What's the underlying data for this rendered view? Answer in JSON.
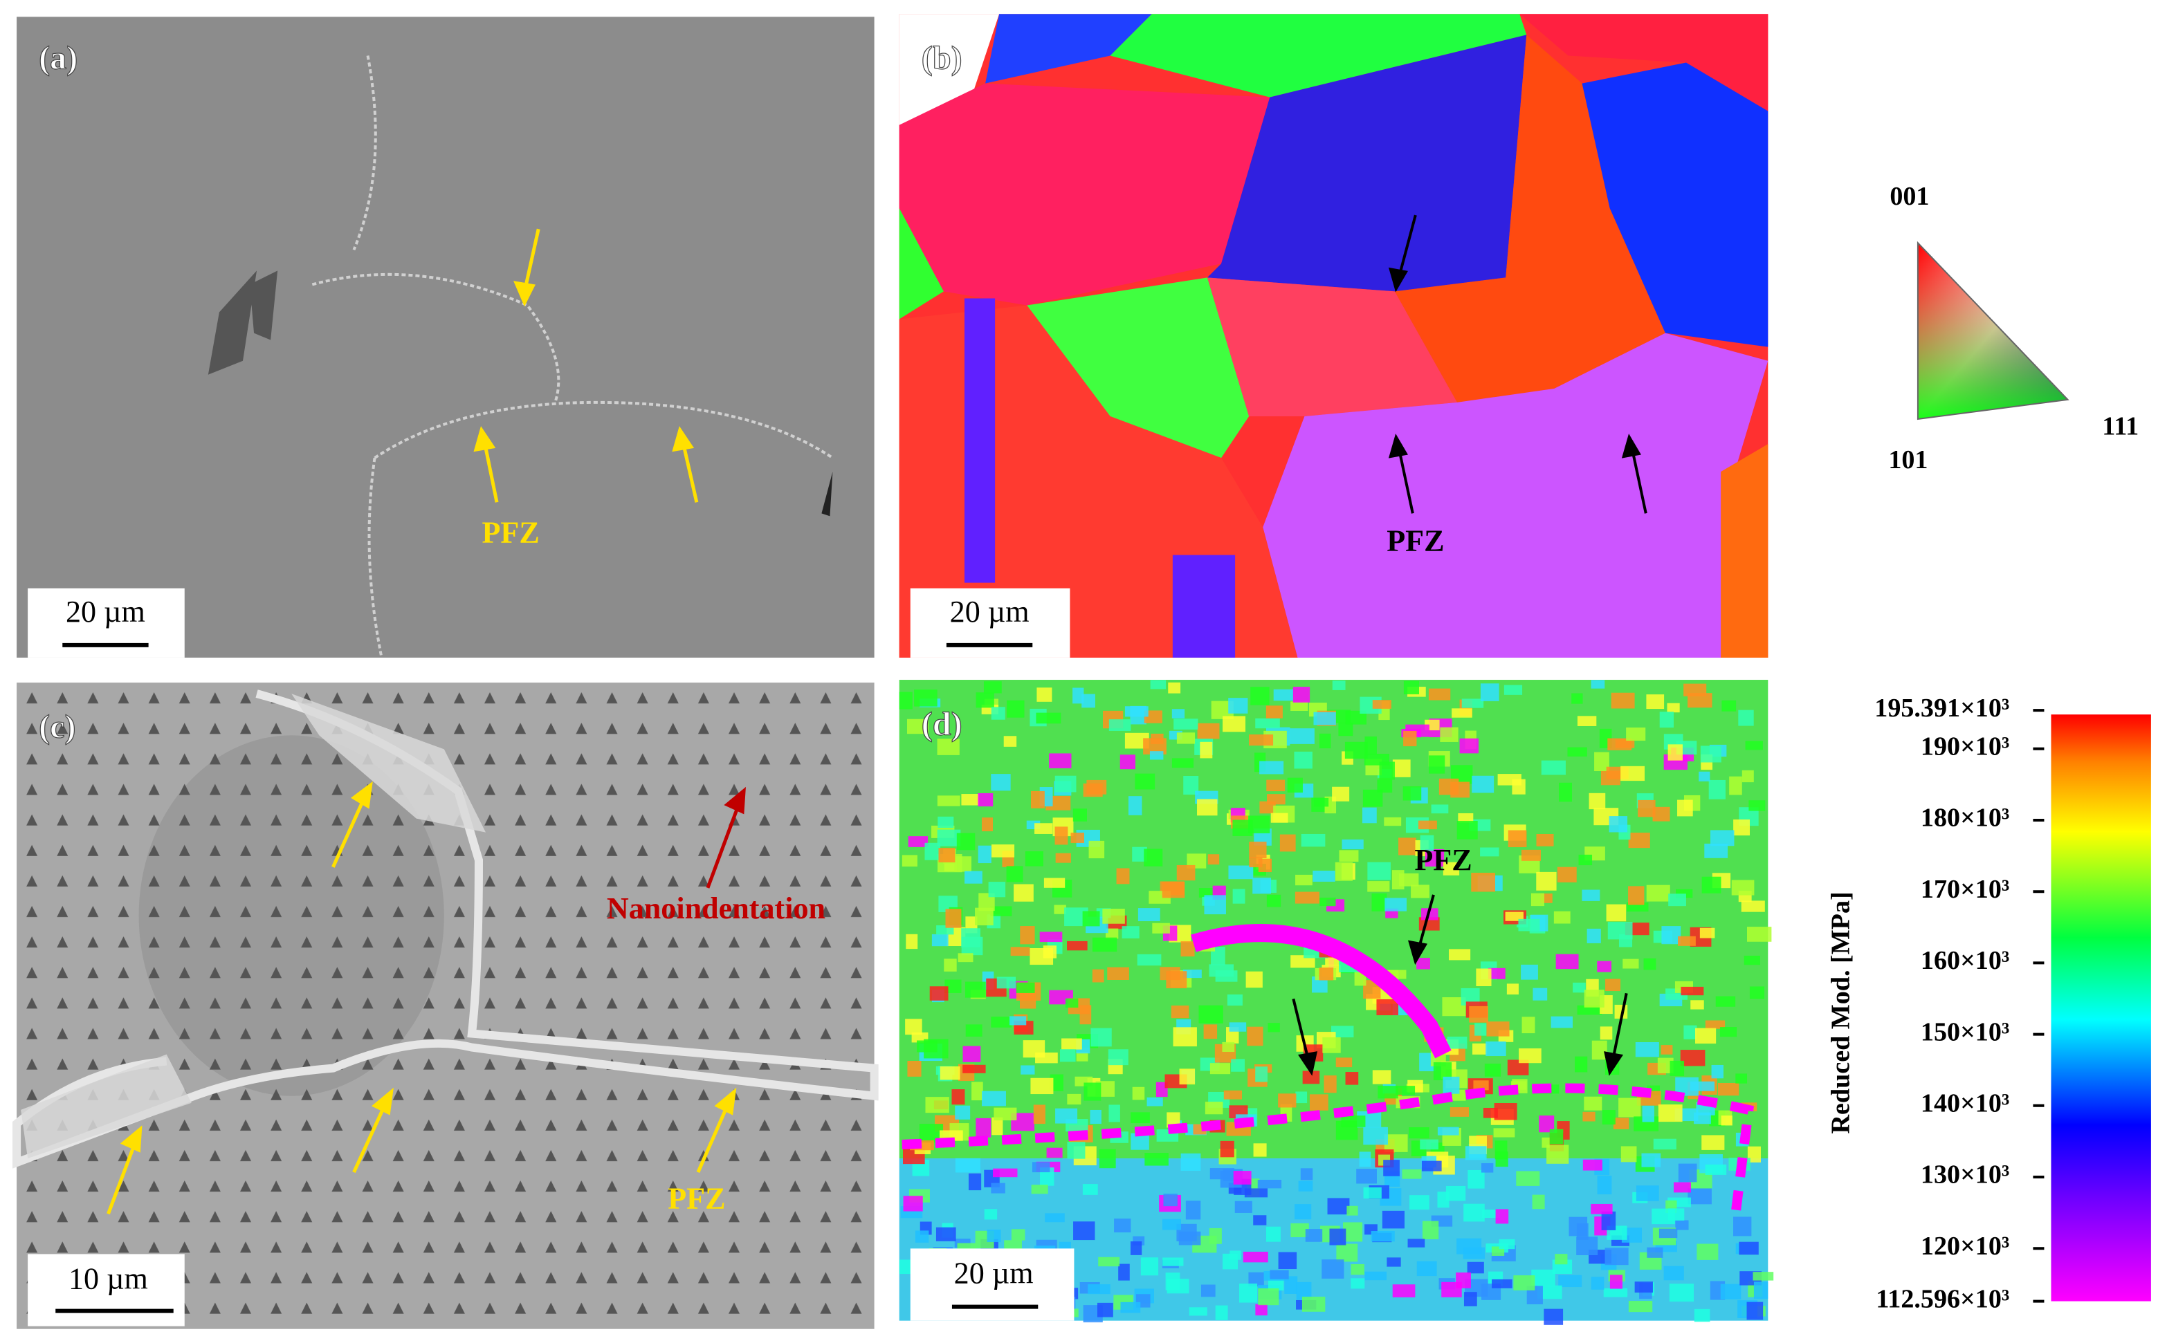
{
  "panels": [
    {
      "label": "(a)",
      "scale_bar": "20 µm",
      "annotations": [
        "PFZ"
      ]
    },
    {
      "label": "(b)",
      "scale_bar": "20 µm",
      "annotations": [
        "PFZ"
      ]
    },
    {
      "label": "(c)",
      "scale_bar": "10 µm",
      "annotations": [
        "PFZ",
        "Nanoindentation"
      ]
    },
    {
      "label": "(d)",
      "scale_bar": "20 µm",
      "annotations": [
        "PFZ"
      ]
    }
  ],
  "ipf_key": {
    "corners": [
      "001",
      "101",
      "111"
    ]
  },
  "colorbar": {
    "label": "Reduced Mod. [MPa]",
    "lim": [
      112596,
      195391
    ],
    "ticks": [
      {
        "value": 195391,
        "label": "195.391×10³"
      },
      {
        "value": 190000,
        "label": "190×10³"
      },
      {
        "value": 180000,
        "label": "180×10³"
      },
      {
        "value": 170000,
        "label": "170×10³"
      },
      {
        "value": 160000,
        "label": "160×10³"
      },
      {
        "value": 150000,
        "label": "150×10³"
      },
      {
        "value": 140000,
        "label": "140×10³"
      },
      {
        "value": 130000,
        "label": "130×10³"
      },
      {
        "value": 120000,
        "label": "120×10³"
      },
      {
        "value": 112596,
        "label": "112.596×10³"
      }
    ]
  }
}
